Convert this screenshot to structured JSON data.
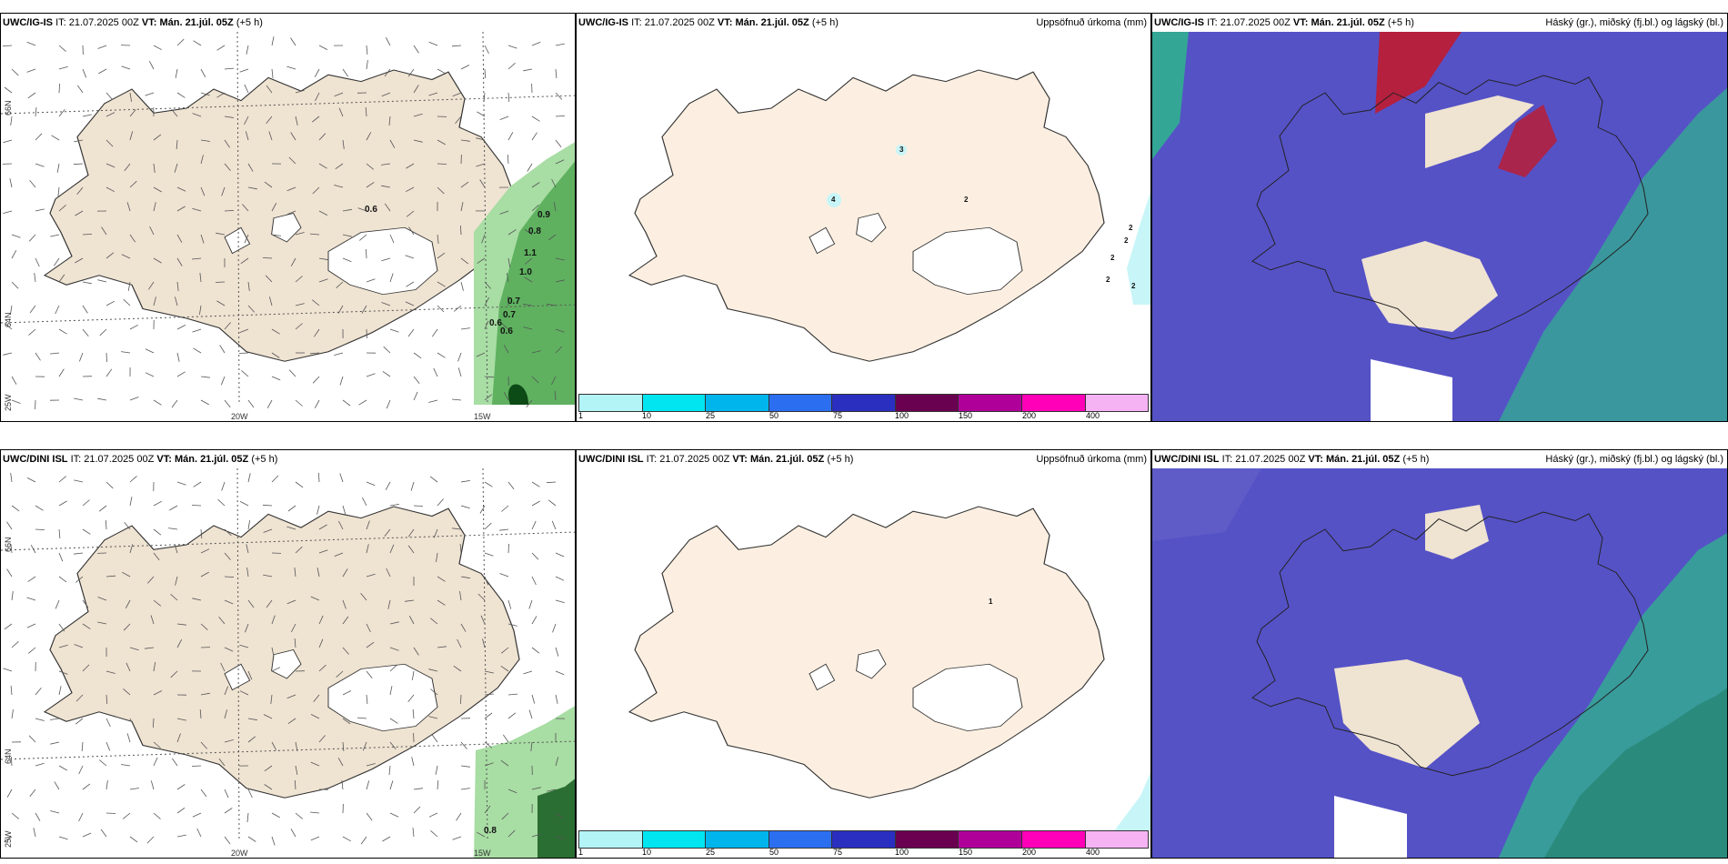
{
  "rows": [
    {
      "model": "UWC/IG-IS",
      "it_label": "IT:",
      "it": "21.07.2025 00Z",
      "vt_label": "VT:",
      "vt": "Mán. 21.júl. 05Z",
      "lead": "(+5 h)",
      "wind_values": [
        "0.6",
        "0.9",
        "0.8",
        "1.1",
        "1.0",
        "0.7",
        "0.7",
        "0.6",
        "0.6"
      ],
      "precip_values": [
        "3",
        "4",
        "2",
        "2",
        "2",
        "2",
        "2",
        "2"
      ]
    },
    {
      "model": "UWC/DINI ISL",
      "it_label": "IT:",
      "it": "21.07.2025 00Z",
      "vt_label": "VT:",
      "vt": "Mán. 21.júl. 05Z",
      "lead": "(+5 h)",
      "wind_values": [
        "0.8"
      ],
      "precip_values": [
        "1"
      ]
    }
  ],
  "precip_title": "Uppsöfnuð úrkoma (mm)",
  "cloud_title": "Háský (gr.), miðský (fj.bl.) og lágský (bl.)",
  "axis_labels": {
    "lat_66": "66N",
    "lat_64": "64N",
    "lon_25": "25W",
    "lon_20": "20W",
    "lon_15": "15W"
  },
  "legend": {
    "ticks": [
      "1",
      "10",
      "25",
      "50",
      "75",
      "100",
      "150",
      "200",
      "400"
    ],
    "colors": [
      "#b3f4f7",
      "#00e5f0",
      "#00b4ec",
      "#2b6ef0",
      "#2a2fc0",
      "#6a0050",
      "#b0009a",
      "#ff00b8",
      "#f6b3f4"
    ]
  },
  "colors": {
    "land": "#efe3d2",
    "land_precip": "#fcefe1",
    "cloud_blue": "#5552c6",
    "cloud_green": "#2fb58c",
    "cloud_red": "#b4203e",
    "wind_green": "#2f8f3a"
  }
}
